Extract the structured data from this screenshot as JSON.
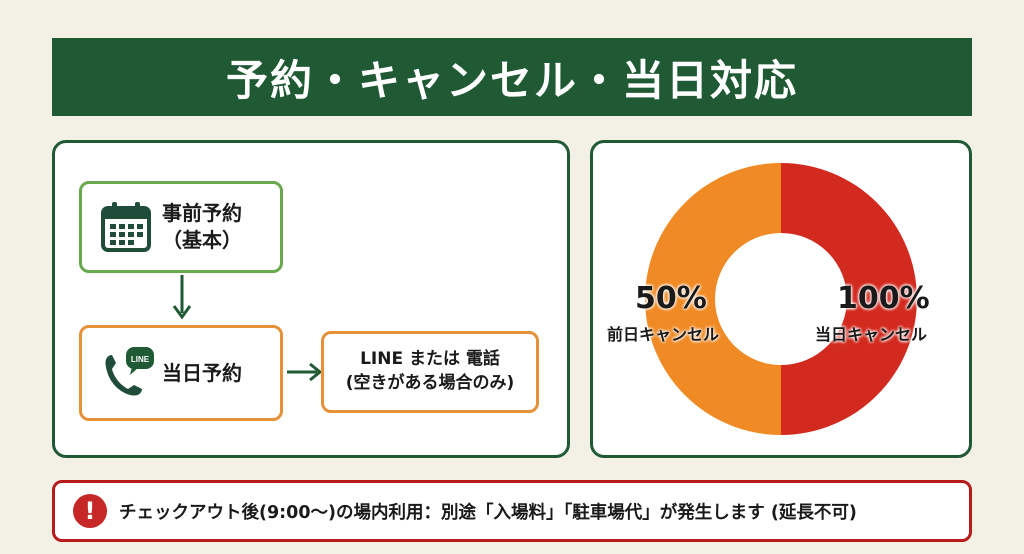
{
  "title": "予約・キャンセル・当日対応",
  "flow": {
    "reserve_line1": "事前予約",
    "reserve_line2": "（基本）",
    "sameday_label": "当日予約",
    "line_icon_text": "LINE",
    "contact_line1": "LINE または 電話",
    "contact_line2": "(空きがある場合のみ)"
  },
  "cancel": {
    "prev_pct": "50%",
    "prev_label": "前日キャンセル",
    "same_pct": "100%",
    "same_label": "当日キャンセル"
  },
  "notice": {
    "icon": "!",
    "text": "チェックアウト後(9:00〜)の場内利用：別途「入場料」「駐車場代」が発生します (延長不可)"
  },
  "colors": {
    "header_green": "#1f5a35",
    "green_border": "#6aa84f",
    "orange": "#f08a24",
    "red": "#d32a1f",
    "alert_red": "#c62828"
  },
  "icons": [
    "calendar-icon",
    "phone-icon",
    "line-chat-icon",
    "exclamation-icon"
  ]
}
